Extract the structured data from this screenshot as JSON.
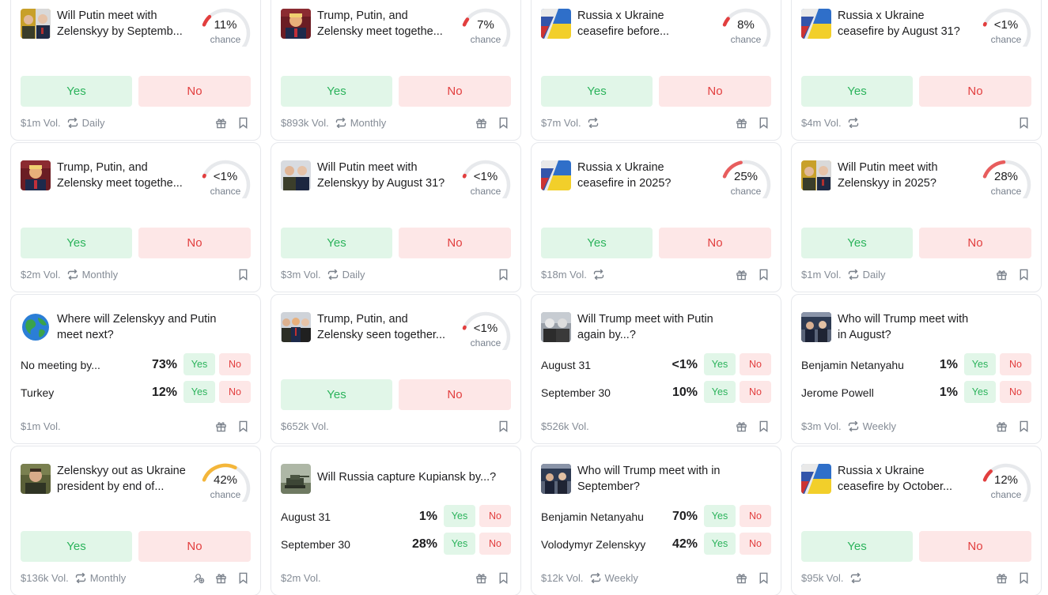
{
  "common": {
    "yes": "Yes",
    "no": "No",
    "chance": "chance"
  },
  "cards": [
    {
      "type": "binary",
      "title_lines": [
        "Will Putin meet with",
        "Zelenskyy by Septemb..."
      ],
      "pct": "11%",
      "prob": 0.11,
      "vol": "$1m Vol.",
      "freq": "Daily",
      "gift": true,
      "thumb": "putin-zelenskyy"
    },
    {
      "type": "binary",
      "title_lines": [
        "Trump, Putin, and",
        "Zelensky meet togethe..."
      ],
      "pct": "7%",
      "prob": 0.07,
      "vol": "$893k Vol.",
      "freq": "Monthly",
      "gift": true,
      "thumb": "trump"
    },
    {
      "type": "binary",
      "title_lines": [
        "Russia x Ukraine",
        "ceasefire before..."
      ],
      "pct": "8%",
      "prob": 0.08,
      "vol": "$7m Vol.",
      "freq": "",
      "gift": true,
      "thumb": "flags"
    },
    {
      "type": "binary",
      "title_lines": [
        "Russia x Ukraine",
        "ceasefire by August 31?"
      ],
      "pct": "<1%",
      "prob": 0.008,
      "vol": "$4m Vol.",
      "freq": "",
      "gift": false,
      "thumb": "flags"
    },
    {
      "type": "binary",
      "title_lines": [
        "Trump, Putin, and",
        "Zelensky meet togethe..."
      ],
      "pct": "<1%",
      "prob": 0.008,
      "vol": "$2m Vol.",
      "freq": "Monthly",
      "gift": false,
      "thumb": "trump"
    },
    {
      "type": "binary",
      "title_lines": [
        "Will Putin meet with",
        "Zelenskyy by August 31?"
      ],
      "pct": "<1%",
      "prob": 0.008,
      "vol": "$3m Vol.",
      "freq": "Daily",
      "gift": false,
      "thumb": "zelenskyy-putin"
    },
    {
      "type": "binary",
      "title_lines": [
        "Russia x Ukraine",
        "ceasefire in 2025?"
      ],
      "pct": "25%",
      "prob": 0.25,
      "vol": "$18m Vol.",
      "freq": "",
      "gift": true,
      "thumb": "flags"
    },
    {
      "type": "binary",
      "title_lines": [
        "Will Putin meet with",
        "Zelenskyy in 2025?"
      ],
      "pct": "28%",
      "prob": 0.28,
      "vol": "$1m Vol.",
      "freq": "Daily",
      "gift": true,
      "thumb": "putin-zelenskyy"
    },
    {
      "type": "multi",
      "title_lines": [
        "Where will Zelenskyy and Putin",
        "meet next?"
      ],
      "outcomes": [
        {
          "name": "No meeting by...",
          "pct": "73%"
        },
        {
          "name": "Turkey",
          "pct": "12%"
        }
      ],
      "vol": "$1m Vol.",
      "freq": "",
      "gift": true,
      "thumb": "globe"
    },
    {
      "type": "binary",
      "title_lines": [
        "Trump, Putin, and",
        "Zelensky seen together..."
      ],
      "pct": "<1%",
      "prob": 0.008,
      "vol": "$652k Vol.",
      "freq": "",
      "gift": false,
      "thumb": "three"
    },
    {
      "type": "multi",
      "title_lines": [
        "Will Trump meet with Putin",
        "again by...?"
      ],
      "outcomes": [
        {
          "name": "August 31",
          "pct": "<1%"
        },
        {
          "name": "September 30",
          "pct": "10%"
        }
      ],
      "vol": "$526k Vol.",
      "freq": "",
      "gift": true,
      "thumb": "bw"
    },
    {
      "type": "multi",
      "title_lines": [
        "Who will Trump meet with",
        "in August?"
      ],
      "outcomes": [
        {
          "name": "Benjamin Netanyahu",
          "pct": "1%"
        },
        {
          "name": "Jerome Powell",
          "pct": "1%"
        }
      ],
      "vol": "$3m Vol.",
      "freq": "Weekly",
      "gift": true,
      "thumb": "meeting"
    },
    {
      "type": "binary",
      "title_lines": [
        "Zelenskyy out as Ukraine",
        "president by end of..."
      ],
      "pct": "42%",
      "prob": 0.42,
      "vol": "$136k Vol.",
      "freq": "Monthly",
      "gift": true,
      "extra": true,
      "thumb": "zelenskyy"
    },
    {
      "type": "multi",
      "title_lines": [
        "Will Russia capture Kupiansk by...?"
      ],
      "outcomes": [
        {
          "name": "August 31",
          "pct": "1%"
        },
        {
          "name": "September 30",
          "pct": "28%"
        }
      ],
      "vol": "$2m Vol.",
      "freq": "",
      "gift": true,
      "thumb": "tank"
    },
    {
      "type": "multi",
      "title_lines": [
        "Who will Trump meet with in",
        "September?"
      ],
      "outcomes": [
        {
          "name": "Benjamin Netanyahu",
          "pct": "70%"
        },
        {
          "name": "Volodymyr Zelenskyy",
          "pct": "42%"
        }
      ],
      "vol": "$12k Vol.",
      "freq": "Weekly",
      "gift": true,
      "thumb": "meeting"
    },
    {
      "type": "binary",
      "title_lines": [
        "Russia x Ukraine",
        "ceasefire by October..."
      ],
      "pct": "12%",
      "prob": 0.12,
      "vol": "$95k Vol.",
      "freq": "",
      "gift": true,
      "thumb": "flags"
    }
  ]
}
